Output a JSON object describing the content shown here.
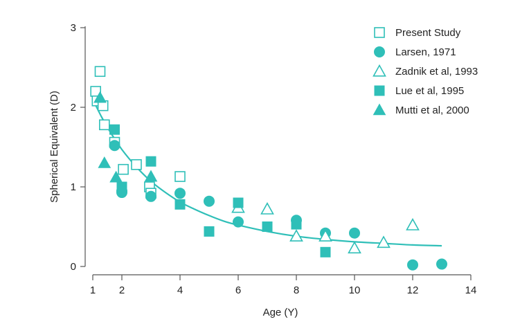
{
  "chart_data": {
    "type": "scatter",
    "xlabel": "Age (Y)",
    "ylabel": "Spherical Equivalent (D)",
    "xlim": [
      1,
      14
    ],
    "ylim": [
      0,
      3
    ],
    "x_ticks": [
      1,
      2,
      4,
      6,
      8,
      10,
      12,
      14
    ],
    "x_tick_labels": [
      "1",
      "2",
      "4",
      "6",
      "8",
      "10",
      "12",
      "14"
    ],
    "y_ticks": [
      0,
      1,
      2,
      3
    ],
    "y_tick_labels": [
      "0",
      "1",
      "2",
      "3"
    ],
    "grid": false,
    "legend_position": "top-right",
    "color": "#2fbfb8",
    "series": [
      {
        "name": "Present Study",
        "marker": "open-square",
        "x": [
          1.1,
          1.15,
          1.25,
          1.35,
          1.4,
          1.75,
          2.05,
          2.5,
          2.95,
          3.0,
          4.0
        ],
        "y": [
          2.2,
          2.08,
          2.45,
          2.02,
          1.78,
          1.56,
          1.22,
          1.28,
          1.0,
          0.92,
          1.13
        ]
      },
      {
        "name": "Larsen, 1971",
        "marker": "filled-circle",
        "x": [
          1.75,
          2.0,
          2.0,
          3.0,
          4.0,
          5.0,
          6.0,
          8.0,
          9.0,
          10.0,
          12.0,
          13.0
        ],
        "y": [
          1.52,
          0.95,
          0.93,
          0.88,
          0.92,
          0.82,
          0.56,
          0.58,
          0.42,
          0.42,
          0.02,
          0.03
        ]
      },
      {
        "name": "Zadnik et al, 1993",
        "marker": "open-triangle",
        "x": [
          6.0,
          7.0,
          8.0,
          9.0,
          10.0,
          11.0,
          12.0
        ],
        "y": [
          0.74,
          0.72,
          0.38,
          0.38,
          0.23,
          0.3,
          0.52
        ]
      },
      {
        "name": "Lue et al, 1995",
        "marker": "filled-square",
        "x": [
          1.75,
          2.0,
          3.0,
          4.0,
          5.0,
          6.0,
          7.0,
          8.0,
          9.0
        ],
        "y": [
          1.72,
          1.0,
          1.32,
          0.78,
          0.44,
          0.8,
          0.5,
          0.53,
          0.18
        ]
      },
      {
        "name": "Mutti et al, 2000",
        "marker": "filled-triangle",
        "x": [
          1.25,
          1.4,
          1.8,
          3.0
        ],
        "y": [
          2.12,
          1.3,
          1.12,
          1.13
        ]
      }
    ],
    "fit_curve": {
      "name": "Exponential fit",
      "x": [
        1.0,
        1.3,
        1.6,
        2.0,
        2.5,
        3.0,
        3.5,
        4.0,
        4.5,
        5.0,
        5.5,
        6.0,
        7.0,
        8.0,
        9.0,
        10.0,
        11.0,
        12.0,
        13.0
      ],
      "y": [
        2.1,
        1.88,
        1.69,
        1.47,
        1.25,
        1.07,
        0.93,
        0.81,
        0.72,
        0.64,
        0.57,
        0.52,
        0.44,
        0.38,
        0.34,
        0.31,
        0.29,
        0.27,
        0.26
      ]
    }
  }
}
